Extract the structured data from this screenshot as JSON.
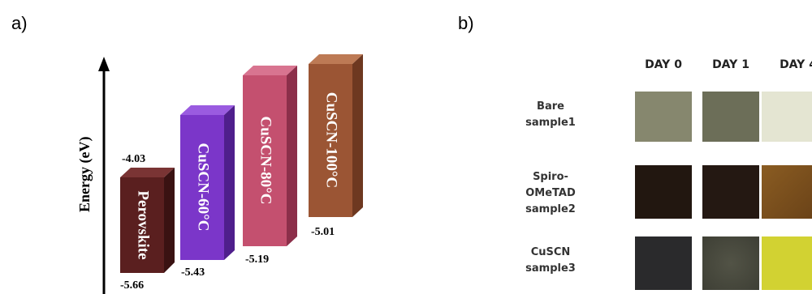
{
  "panel_a": {
    "label": "a)",
    "axis_label": "Energy (eV)",
    "top_level": "-4.03",
    "bars": [
      {
        "name": "Perovskite",
        "value": "-5.66",
        "color": "#5a1f1f"
      },
      {
        "name": "CuSCN-60°C",
        "value": "-5.43",
        "color": "#7b36c9"
      },
      {
        "name": "CuSCN-80°C",
        "value": "-5.19",
        "color": "#c4506f"
      },
      {
        "name": "CuSCN-100°C",
        "value": "-5.01",
        "color": "#9b5534"
      }
    ]
  },
  "panel_b": {
    "label": "b)",
    "days": [
      "DAY 0",
      "DAY 1",
      "DAY 4"
    ],
    "rows": [
      {
        "label": "Bare\nsample1",
        "colors": [
          "#86876e",
          "#6c6e58",
          "#e4e5d2"
        ]
      },
      {
        "label": "Spiro-\nOMeTAD\nsample2",
        "colors": [
          "#221710",
          "#241812",
          "#7a4f1c"
        ]
      },
      {
        "label": "CuSCN\nsample3",
        "colors": [
          "#2a2a2c",
          "#46473c",
          "#d2d232"
        ]
      }
    ]
  }
}
